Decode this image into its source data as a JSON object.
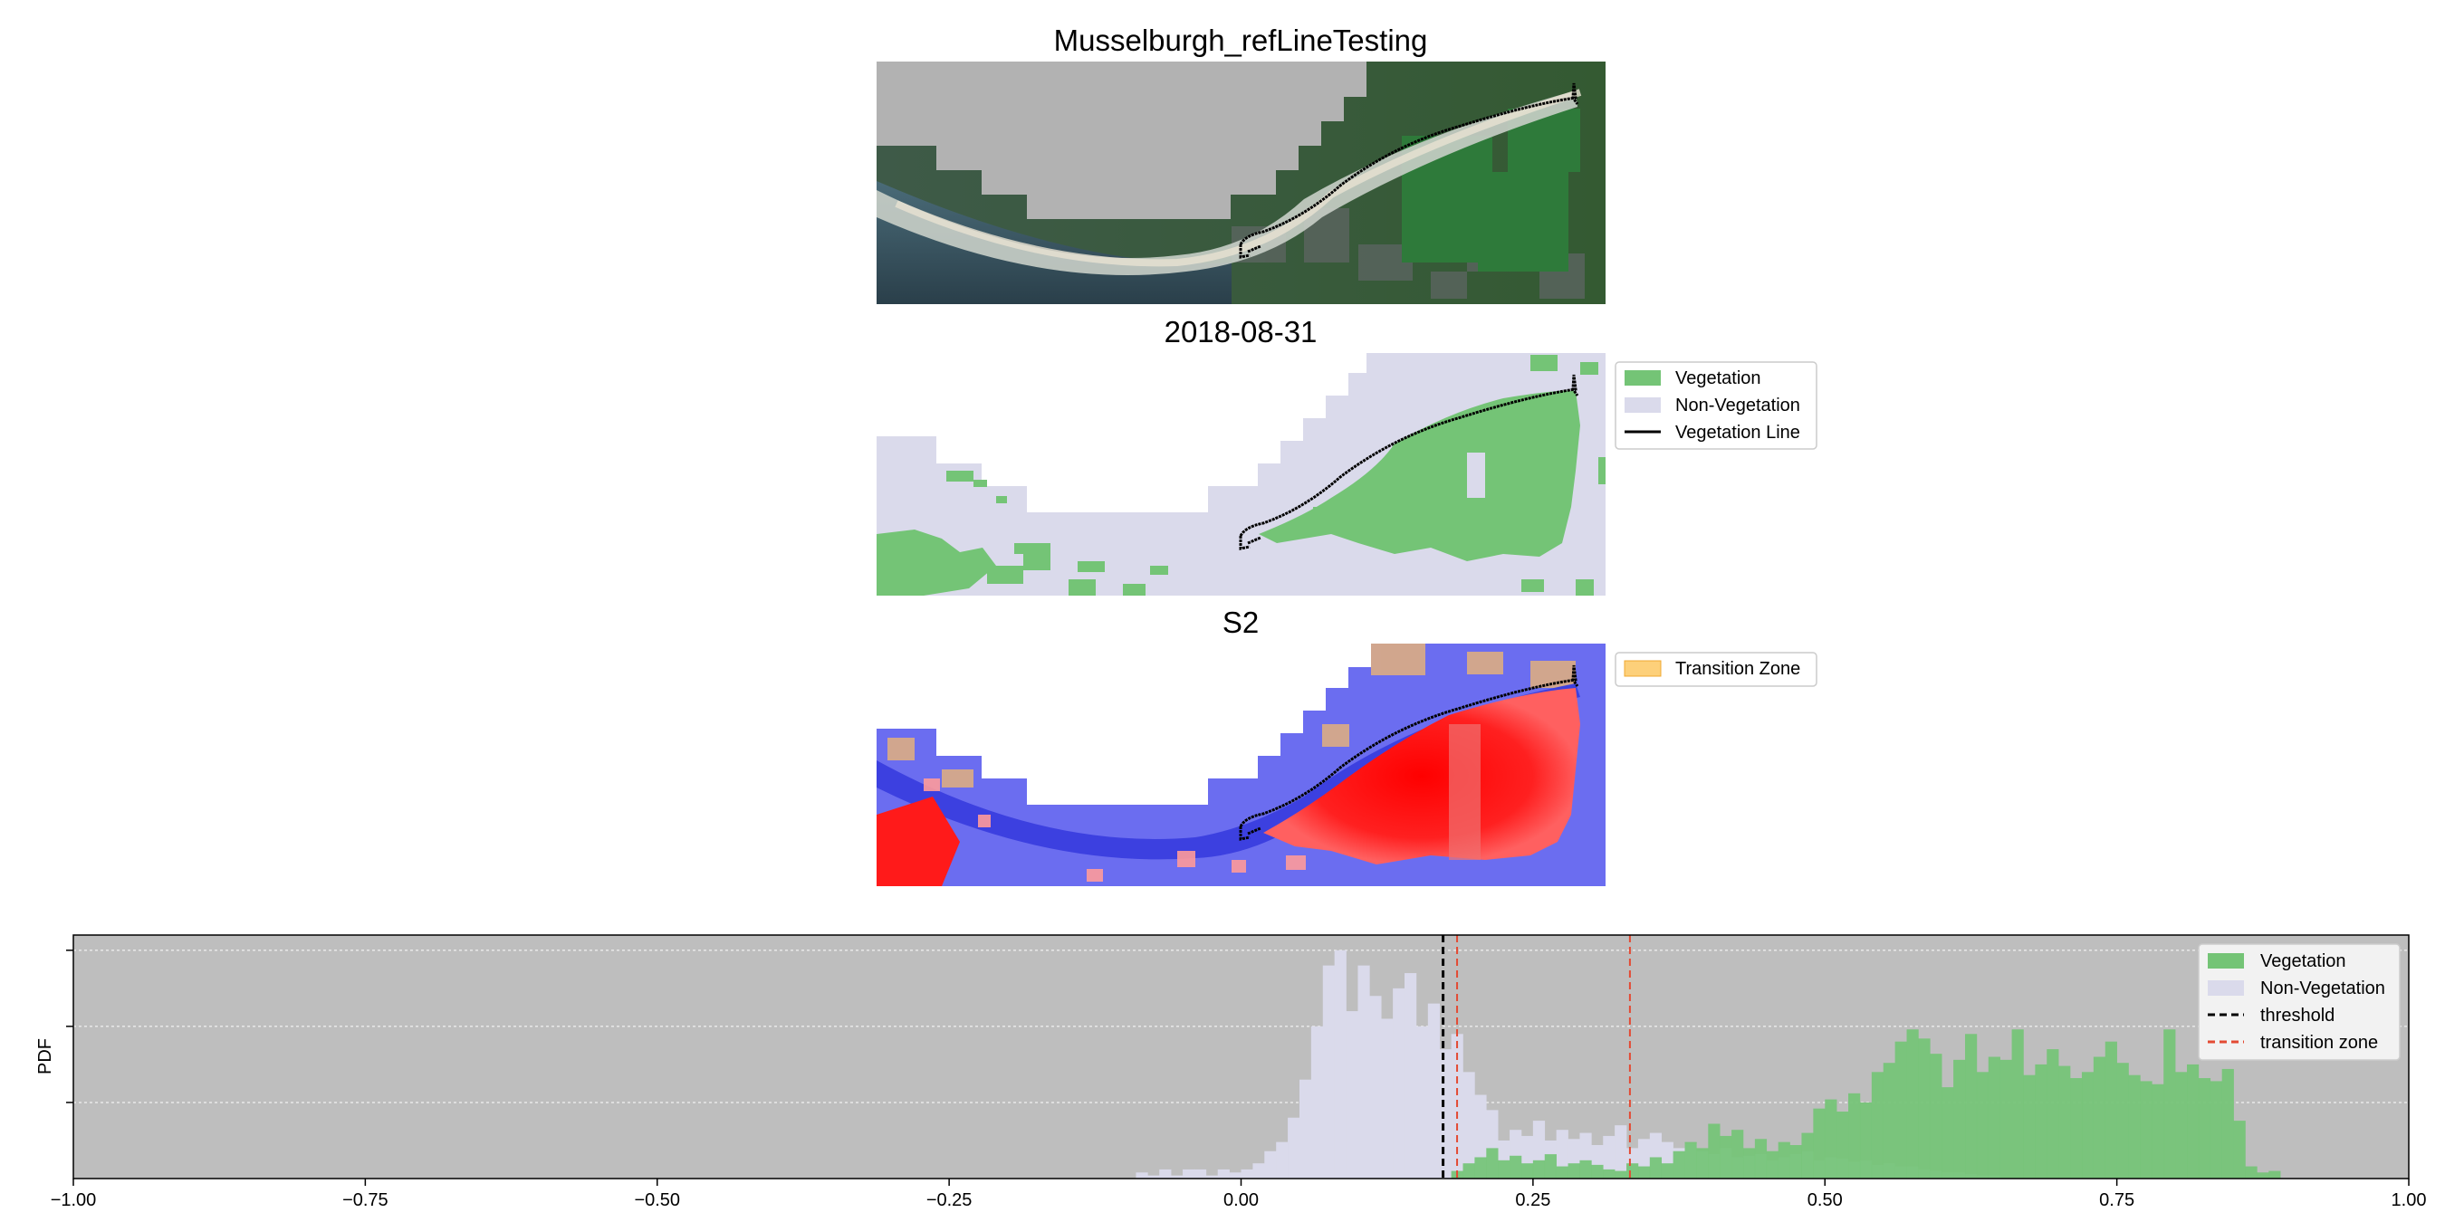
{
  "figure": {
    "title": "Musselburgh_refLineTesting",
    "date_title": "2018-08-31",
    "sat_title": "S2"
  },
  "panels": {
    "classification_legend": [
      "Vegetation",
      "Non-Vegetation",
      "Vegetation Line"
    ],
    "index_legend": [
      "Transition Zone"
    ]
  },
  "colors": {
    "vegetation": "#74c476",
    "non_vegetation": "#dadaeb",
    "threshold": "#000000",
    "transition": "#e34a33",
    "transition_zone_fill": "#fdd07a",
    "hist_bg": "#bebebe"
  },
  "chart_data": {
    "type": "bar",
    "xlabel": "",
    "ylabel": "PDF",
    "xlim": [
      -1.0,
      1.0
    ],
    "ylim": [
      0,
      16
    ],
    "grid": "horizontal dashed",
    "legend_position": "top-right",
    "x_ticks": [
      "−1.00",
      "−0.75",
      "−0.50",
      "−0.25",
      "0.00",
      "0.25",
      "0.50",
      "0.75",
      "1.00"
    ],
    "bin_width": 0.01,
    "threshold": 0.173,
    "transition_zone": [
      0.185,
      0.333
    ],
    "legend": [
      "Vegetation",
      "Non-Vegetation",
      "threshold",
      "transition zone"
    ],
    "series": [
      {
        "name": "Non-Vegetation",
        "bin_start": -0.09,
        "values": [
          0.4,
          0.2,
          0.6,
          0.2,
          0.6,
          0.6,
          0.2,
          0.6,
          0.4,
          0.6,
          1.0,
          1.8,
          2.4,
          4.0,
          6.5,
          10.0,
          14.0,
          15.0,
          11.0,
          14.0,
          12.0,
          10.5,
          12.5,
          13.5,
          10.0,
          11.5,
          8.5,
          9.5,
          7.0,
          5.5,
          4.5,
          2.5,
          3.2,
          2.8,
          3.8,
          2.5,
          3.2,
          2.6,
          3.0,
          2.2,
          2.8,
          3.5,
          2.0,
          2.6,
          3.0,
          2.4,
          2.0,
          2.3,
          1.8,
          1.6,
          2.0,
          1.4,
          1.5,
          1.6,
          1.2,
          1.4,
          1.6,
          1.8,
          1.2,
          1.4,
          1.3,
          1.1,
          1.2,
          0.9,
          1.0,
          0.8,
          0.8,
          0.6,
          0.5,
          0.4,
          0.4,
          0.3,
          0.2,
          0.2
        ]
      },
      {
        "name": "Vegetation",
        "bin_start": 0.18,
        "values": [
          0.5,
          1.0,
          1.4,
          2.0,
          1.2,
          1.5,
          1.0,
          1.2,
          1.6,
          0.8,
          1.0,
          1.2,
          0.9,
          0.6,
          0.5,
          1.0,
          0.8,
          1.4,
          1.0,
          1.8,
          2.4,
          2.0,
          3.6,
          2.8,
          3.2,
          2.0,
          2.6,
          1.8,
          2.4,
          2.2,
          3.0,
          4.6,
          5.2,
          4.4,
          5.6,
          5.0,
          7.0,
          7.6,
          9.0,
          9.8,
          9.2,
          8.2,
          6.0,
          7.8,
          9.5,
          7.0,
          8.0,
          7.8,
          9.8,
          6.8,
          7.5,
          8.5,
          7.4,
          6.6,
          7.0,
          8.0,
          9.0,
          7.6,
          6.8,
          6.4,
          6.2,
          9.8,
          7.0,
          7.5,
          6.6,
          6.4,
          7.2,
          3.8,
          0.8,
          0.4,
          0.5
        ]
      }
    ]
  }
}
